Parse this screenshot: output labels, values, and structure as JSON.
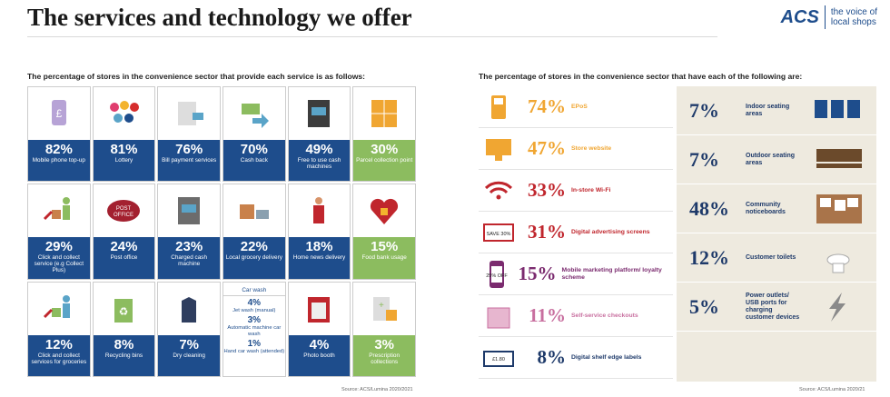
{
  "header": {
    "title": "The services and technology we offer",
    "logo_mark": "ACS",
    "logo_tag_line1": "the voice of",
    "logo_tag_line2": "local shops"
  },
  "left": {
    "heading": "The percentage of stores in the convenience sector that provide each service is as follows:",
    "cells": [
      {
        "pct": "82%",
        "label": "Mobile phone top-up",
        "color": "blue",
        "icon": "phone-icon"
      },
      {
        "pct": "81%",
        "label": "Lottery",
        "color": "blue",
        "icon": "lottery-balls-icon"
      },
      {
        "pct": "76%",
        "label": "Bill payment services",
        "color": "blue",
        "icon": "bill-icon"
      },
      {
        "pct": "70%",
        "label": "Cash back",
        "color": "blue",
        "icon": "cash-back-icon"
      },
      {
        "pct": "49%",
        "label": "Free to use cash machines",
        "color": "blue",
        "icon": "atm-icon"
      },
      {
        "pct": "30%",
        "label": "Parcel collection point",
        "color": "green",
        "icon": "parcel-lockers-icon"
      },
      {
        "pct": "29%",
        "label": "Click and collect service (e.g Collect Plus)",
        "color": "blue",
        "icon": "click-collect-icon"
      },
      {
        "pct": "24%",
        "label": "Post office",
        "color": "blue",
        "icon": "post-office-icon"
      },
      {
        "pct": "23%",
        "label": "Charged cash machine",
        "color": "blue",
        "icon": "cash-machine-icon"
      },
      {
        "pct": "22%",
        "label": "Local grocery delivery",
        "color": "blue",
        "icon": "delivery-icon"
      },
      {
        "pct": "18%",
        "label": "Home news delivery",
        "color": "blue",
        "icon": "newspaper-delivery-icon"
      },
      {
        "pct": "15%",
        "label": "Food bank usage",
        "color": "green",
        "icon": "food-bank-icon"
      },
      {
        "pct": "12%",
        "label": "Click and collect services for groceries",
        "color": "blue",
        "icon": "grocery-collect-icon"
      },
      {
        "pct": "8%",
        "label": "Recycling bins",
        "color": "blue",
        "icon": "recycling-bin-icon"
      },
      {
        "pct": "7%",
        "label": "Dry cleaning",
        "color": "blue",
        "icon": "dry-cleaning-icon"
      },
      {
        "carwash": true,
        "title": "Car wash",
        "items": [
          {
            "pct": "4%",
            "label": "Jet wash (manual)"
          },
          {
            "pct": "3%",
            "label": "Automatic machine car wash"
          },
          {
            "pct": "1%",
            "label": "Hand car wash (attended)"
          }
        ]
      },
      {
        "pct": "4%",
        "label": "Photo booth",
        "color": "blue",
        "icon": "photo-booth-icon"
      },
      {
        "pct": "3%",
        "label": "Prescription collections",
        "color": "green",
        "icon": "prescription-icon"
      }
    ],
    "source": "Source: ACS/Lumina 2020/2021"
  },
  "right": {
    "heading": "The percentage of stores in the convenience sector that have each of the following are:",
    "items": [
      {
        "pct": "74%",
        "label": "EPoS",
        "color": "orange",
        "icon": "epos-icon"
      },
      {
        "pct": "47%",
        "label": "Store website",
        "color": "orange",
        "icon": "computer-icon"
      },
      {
        "pct": "33%",
        "label": "In-store Wi-Fi",
        "color": "red",
        "icon": "wifi-icon"
      },
      {
        "pct": "31%",
        "label": "Digital advertising screens",
        "color": "red",
        "icon": "screen-icon",
        "icon_text": "SAVE 30%"
      },
      {
        "pct": "15%",
        "label": "Mobile marketing platform/ loyalty scheme",
        "color": "purple",
        "icon": "mobile-marketing-icon",
        "icon_text": "25% OFF"
      },
      {
        "pct": "11%",
        "label": "Self-service checkouts",
        "color": "pink",
        "icon": "self-checkout-icon"
      },
      {
        "pct": "8%",
        "label": "Digital shelf edge labels",
        "color": "navy",
        "icon": "shelf-label-icon",
        "icon_text": "£1.80"
      }
    ],
    "panel": [
      {
        "pct": "7%",
        "label": "Indoor seating areas",
        "icon": "chairs-icon"
      },
      {
        "pct": "7%",
        "label": "Outdoor seating areas",
        "icon": "bench-icon"
      },
      {
        "pct": "48%",
        "label": "Community noticeboards",
        "icon": "noticeboard-icon"
      },
      {
        "pct": "12%",
        "label": "Customer toilets",
        "icon": "toilet-icon"
      },
      {
        "pct": "5%",
        "label": "Power outlets/ USB ports for charging customer devices",
        "icon": "lightning-icon"
      }
    ],
    "source": "Source: ACS/Lumina 2020/21"
  }
}
